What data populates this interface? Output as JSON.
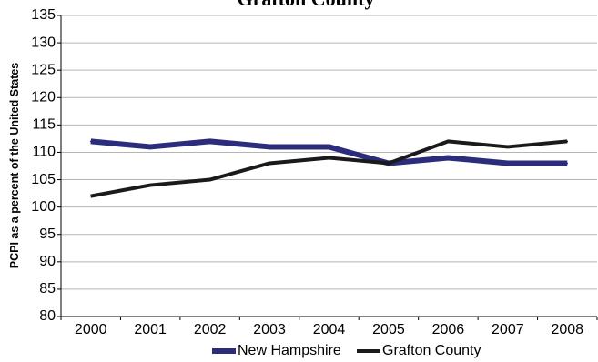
{
  "chart_data": {
    "type": "line",
    "title": "Grafton County",
    "xlabel": "",
    "ylabel": "PCPI as a percent of the United States",
    "categories": [
      "2000",
      "2001",
      "2002",
      "2003",
      "2004",
      "2005",
      "2006",
      "2007",
      "2008"
    ],
    "ylim": [
      80,
      135
    ],
    "yticks": [
      80,
      85,
      90,
      95,
      100,
      105,
      110,
      115,
      120,
      125,
      130,
      135
    ],
    "grid": true,
    "legend_position": "bottom",
    "series": [
      {
        "name": "New Hampshire",
        "color": "#2b2d7c",
        "values": [
          112,
          111,
          112,
          111,
          111,
          108,
          109,
          108,
          108
        ]
      },
      {
        "name": "Grafton County",
        "color": "#1a1a1a",
        "values": [
          102,
          104,
          105,
          108,
          109,
          108,
          112,
          111,
          112
        ]
      }
    ]
  }
}
